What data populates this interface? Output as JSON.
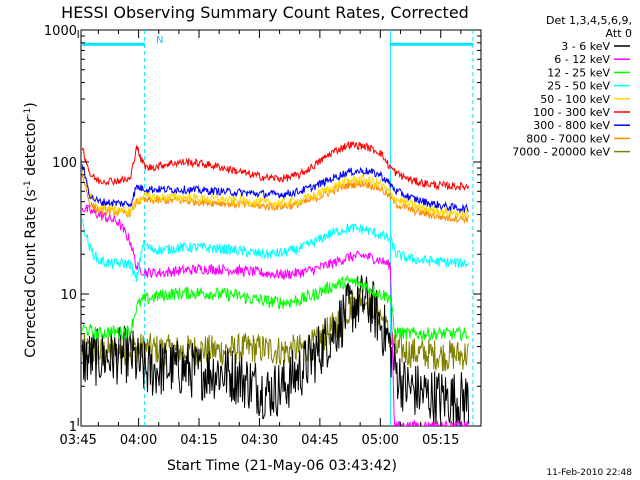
{
  "chart_data": {
    "type": "line",
    "title": "HESSI Observing Summary Count Rates, Corrected",
    "xlabel": "Start Time (21-May-06 03:43:42)",
    "ylabel_base": "Corrected Count Rate (s",
    "ylabel_sup1": "-1",
    "ylabel_mid": " detector",
    "ylabel_sup2": "-1",
    "ylabel_end": ")",
    "ylim": [
      1,
      1000
    ],
    "yscale": "log",
    "xlim_min": [
      225.7,
      325
    ],
    "x_ticks_min": [
      225,
      240,
      255,
      270,
      285,
      300,
      315
    ],
    "x_tick_labels": [
      "03:45",
      "04:00",
      "04:15",
      "04:30",
      "04:45",
      "05:00",
      "05:15"
    ],
    "y_ticks": [
      1,
      10,
      100,
      1000
    ],
    "y_tick_labels": [
      "1",
      "10",
      "100",
      "1000"
    ],
    "grid": false,
    "legend": {
      "header1": "Det 1,3,4,5,6,9,",
      "header2": "Att 0",
      "placement": "right"
    },
    "annotations": {
      "flag_label": "N",
      "timestamp": "11-Feb-2010 22:48"
    },
    "markers": {
      "solid_x_min": [
        302.5
      ],
      "dashed_x_min": [
        241.5,
        323
      ]
    },
    "flag_bars": [
      {
        "x": [
          226,
          241.5
        ],
        "y": 780
      },
      {
        "x": [
          302.5,
          323
        ],
        "y": 780
      }
    ],
    "series": [
      {
        "name": "3 - 6 keV",
        "color": "#000000",
        "x": [
          226,
          230,
          235,
          238,
          239.5,
          242,
          248,
          255,
          260,
          264,
          268,
          272,
          276,
          280,
          284,
          288,
          292,
          295,
          298,
          300,
          302,
          303.5,
          306,
          312,
          318,
          322
        ],
        "y": [
          3.2,
          3.3,
          3.4,
          3.5,
          3.0,
          2.6,
          2.8,
          2.6,
          2.6,
          2.4,
          2.1,
          1.8,
          2.0,
          2.6,
          3.5,
          5.0,
          7.5,
          9.0,
          8.0,
          6.0,
          4.5,
          2.8,
          2.0,
          1.7,
          1.6,
          1.6
        ]
      },
      {
        "name": "6 - 12 keV",
        "color": "#ff00ff",
        "x": [
          226,
          230,
          235,
          238,
          239.5,
          242,
          246,
          250,
          256,
          262,
          268,
          272,
          276,
          280,
          284,
          288,
          292,
          296,
          300,
          302.5,
          303.5,
          306,
          310,
          315,
          322
        ],
        "y": [
          45,
          40,
          35,
          25,
          16,
          14.5,
          14.5,
          15,
          15.5,
          15.3,
          14.8,
          14.3,
          14.0,
          14.5,
          15.5,
          17,
          19,
          19.5,
          18,
          16.5,
          1.0,
          1.0,
          1.0,
          1.0,
          1.0
        ]
      },
      {
        "name": "12 - 25 keV",
        "color": "#00ff00",
        "x": [
          226,
          230,
          233,
          236,
          238,
          239.5,
          241,
          244,
          248,
          252,
          256,
          260,
          264,
          268,
          272,
          276,
          280,
          284,
          288,
          292,
          295,
          298,
          300,
          302.5,
          303.5,
          306,
          310,
          315,
          322
        ],
        "y": [
          5.5,
          5.0,
          5.2,
          5.1,
          5.3,
          8.0,
          9.0,
          9.5,
          10,
          10.2,
          10.2,
          10.0,
          9.8,
          9.2,
          8.8,
          8.6,
          9.0,
          10,
          11.5,
          12.5,
          12.0,
          10.8,
          10,
          9.5,
          5.2,
          5.0,
          5.0,
          5.0,
          5.0
        ]
      },
      {
        "name": "25 - 50 keV",
        "color": "#00ffff",
        "x": [
          226,
          228,
          230,
          233,
          236,
          238,
          239.5,
          241,
          243,
          246,
          250,
          255,
          260,
          264,
          268,
          272,
          276,
          280,
          284,
          288,
          292,
          296,
          300,
          302.5,
          304,
          306,
          310,
          315,
          322
        ],
        "y": [
          35,
          22,
          18,
          17,
          17,
          17,
          12.5,
          24,
          22,
          21.5,
          22.5,
          22.5,
          22,
          21.5,
          20.5,
          20,
          20.5,
          22,
          25,
          29,
          31.5,
          31,
          28,
          26,
          20,
          19,
          18,
          17.5,
          17
        ]
      },
      {
        "name": "50 - 100 keV",
        "color": "#ffd700",
        "x": [
          226,
          228,
          230,
          234,
          238,
          239.5,
          241,
          245,
          250,
          255,
          260,
          264,
          268,
          272,
          276,
          280,
          284,
          288,
          292,
          296,
          300,
          302,
          304,
          308,
          312,
          316,
          322
        ],
        "y": [
          90,
          55,
          46,
          44,
          42,
          50,
          55,
          54,
          54,
          53,
          52,
          51,
          50,
          49,
          49,
          51,
          56,
          64,
          72,
          74,
          68,
          60,
          52,
          47,
          44,
          42,
          40
        ]
      },
      {
        "name": "100 - 300 keV",
        "color": "#ff0000",
        "x": [
          226,
          228,
          230,
          234,
          238,
          239.5,
          240.5,
          242,
          244,
          248,
          252,
          256,
          260,
          264,
          268,
          272,
          276,
          280,
          284,
          288,
          292,
          296,
          300,
          302,
          304,
          308,
          312,
          316,
          322
        ],
        "y": [
          130,
          80,
          72,
          72,
          74,
          135,
          105,
          90,
          92,
          98,
          100,
          97,
          92,
          86,
          80,
          76,
          75,
          80,
          96,
          118,
          135,
          132,
          118,
          95,
          82,
          72,
          68,
          66,
          65
        ]
      },
      {
        "name": "300 - 800 keV",
        "color": "#0000ff",
        "x": [
          226,
          228,
          230,
          234,
          238,
          239.5,
          241,
          245,
          250,
          255,
          260,
          264,
          268,
          272,
          276,
          280,
          284,
          288,
          292,
          296,
          300,
          302,
          304,
          308,
          312,
          316,
          322
        ],
        "y": [
          95,
          55,
          50,
          49,
          48,
          65,
          63,
          62,
          62,
          61,
          60,
          59,
          58,
          57,
          57,
          60,
          66,
          75,
          84,
          86,
          80,
          70,
          60,
          53,
          49,
          46,
          44
        ]
      },
      {
        "name": "800 - 7000 keV",
        "color": "#ff8c00",
        "x": [
          226,
          228,
          230,
          234,
          238,
          239.5,
          241,
          245,
          250,
          255,
          260,
          264,
          268,
          272,
          276,
          280,
          284,
          288,
          292,
          296,
          300,
          302,
          304,
          308,
          312,
          316,
          322
        ],
        "y": [
          80,
          48,
          43,
          42,
          41,
          50,
          51,
          51,
          51,
          50,
          49,
          48,
          47,
          46,
          46,
          48,
          53,
          60,
          67,
          69,
          63,
          56,
          48,
          43,
          40,
          38,
          37
        ]
      },
      {
        "name": "7000 - 20000 keV",
        "color": "#808000",
        "x": [
          226,
          230,
          235,
          240,
          245,
          250,
          255,
          260,
          265,
          268,
          272,
          276,
          280,
          284,
          288,
          292,
          295,
          298,
          300,
          302,
          304,
          308,
          312,
          316,
          322
        ],
        "y": [
          3.8,
          3.6,
          3.7,
          3.9,
          3.8,
          3.7,
          3.8,
          3.7,
          3.8,
          3.9,
          3.8,
          3.7,
          3.8,
          4.2,
          5.5,
          7.5,
          9.5,
          8.5,
          7.0,
          5.0,
          3.8,
          3.6,
          3.5,
          3.4,
          3.5
        ]
      }
    ]
  }
}
